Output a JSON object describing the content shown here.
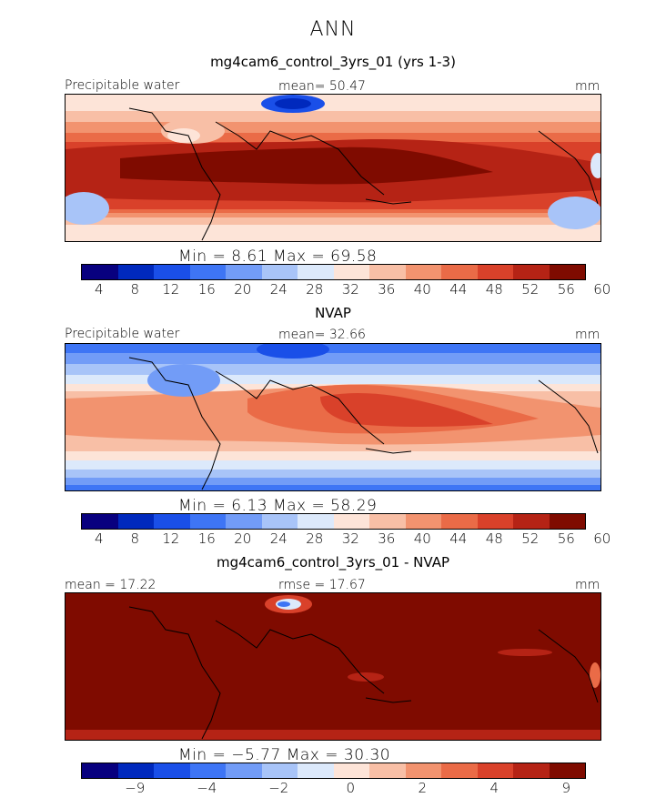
{
  "figure": {
    "suptitle": "ANN"
  },
  "colors": {
    "abs_scale": [
      "#08007f",
      "#0029bd",
      "#1a4fe8",
      "#3e75f5",
      "#729cf7",
      "#a8c4f8",
      "#dce9fb",
      "#fde4d8",
      "#f8bfa6",
      "#f2936f",
      "#ea6b47",
      "#d9412a",
      "#b52315",
      "#7f0b00"
    ],
    "diff_scale": [
      "#08007f",
      "#0029bd",
      "#1a4fe8",
      "#3e75f5",
      "#729cf7",
      "#a8c4f8",
      "#dce9fb",
      "#fde4d8",
      "#f8bfa6",
      "#f2936f",
      "#ea6b47",
      "#d9412a",
      "#b52315",
      "#7f0b00"
    ]
  },
  "chart_data": [
    {
      "type": "heatmap",
      "title": "mg4cam6_control_3yrs_01 (yrs 1-3)",
      "left_label": "Precipitable water",
      "center_label": "mean=  50.47",
      "right_label": "mm",
      "stats_label": "Min =    8.61  Max =   69.58",
      "mean": 50.47,
      "min": 8.61,
      "max": 69.58,
      "units": "mm",
      "colorbar_ticks": [
        "4",
        "8",
        "12",
        "16",
        "20",
        "24",
        "28",
        "32",
        "36",
        "40",
        "44",
        "48",
        "52",
        "56",
        "60"
      ]
    },
    {
      "type": "heatmap",
      "title": "NVAP",
      "left_label": "Precipitable water",
      "center_label": "mean=  32.66",
      "right_label": "mm",
      "stats_label": "Min =    6.13  Max =   58.29",
      "mean": 32.66,
      "min": 6.13,
      "max": 58.29,
      "units": "mm",
      "colorbar_ticks": [
        "4",
        "8",
        "12",
        "16",
        "20",
        "24",
        "28",
        "32",
        "36",
        "40",
        "44",
        "48",
        "52",
        "56",
        "60"
      ]
    },
    {
      "type": "heatmap",
      "title": "mg4cam6_control_3yrs_01 - NVAP",
      "left_label": "mean =  17.22",
      "center_label": "rmse =  17.67",
      "right_label": "mm",
      "stats_label": "Min =  −5.77  Max =   30.30",
      "mean": 17.22,
      "rmse": 17.67,
      "min": -5.77,
      "max": 30.3,
      "units": "mm",
      "colorbar_ticks": [
        "−9",
        "",
        "−4",
        "",
        "−2",
        "",
        "0",
        "",
        "2",
        "",
        "4",
        "",
        "9"
      ]
    }
  ]
}
